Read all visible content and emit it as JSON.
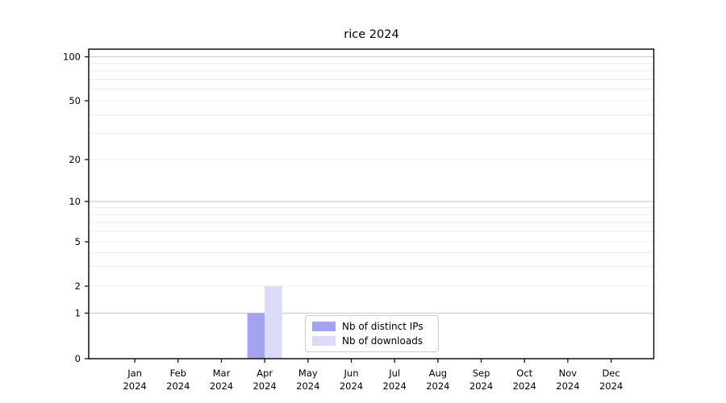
{
  "chart_data": {
    "type": "bar",
    "title": "rice 2024",
    "categories": [
      "Jan 2024",
      "Feb 2024",
      "Mar 2024",
      "Apr 2024",
      "May 2024",
      "Jun 2024",
      "Jul 2024",
      "Aug 2024",
      "Sep 2024",
      "Oct 2024",
      "Nov 2024",
      "Dec 2024"
    ],
    "month_labels": [
      "Jan",
      "Feb",
      "Mar",
      "Apr",
      "May",
      "Jun",
      "Jul",
      "Aug",
      "Sep",
      "Oct",
      "Nov",
      "Dec"
    ],
    "year_label": "2024",
    "series": [
      {
        "name": "Nb of distinct IPs",
        "color": "#a3a3f0",
        "values": [
          0,
          0,
          0,
          1,
          0,
          0,
          0,
          0,
          0,
          0,
          0,
          0
        ]
      },
      {
        "name": "Nb of downloads",
        "color": "#dbdbf9",
        "values": [
          0,
          0,
          0,
          2,
          0,
          0,
          0,
          0,
          0,
          0,
          0,
          0
        ]
      }
    ],
    "yscale": "symlog",
    "ylim": [
      0,
      100
    ],
    "y_tick_values": [
      100,
      50,
      20,
      10,
      5,
      2,
      1,
      0
    ],
    "y_minor_grid_values": [
      2,
      3,
      4,
      5,
      6,
      7,
      8,
      9,
      20,
      30,
      40,
      50,
      60,
      70,
      80,
      90
    ],
    "y_major_grid_values": [
      1,
      10,
      100
    ],
    "grid": true,
    "legend_position": "lower center-right",
    "colors": {
      "grid_minor": "#ececec",
      "grid_major": "#c9c9c9",
      "axis": "#000000",
      "text": "#000000",
      "background": "#ffffff"
    }
  }
}
